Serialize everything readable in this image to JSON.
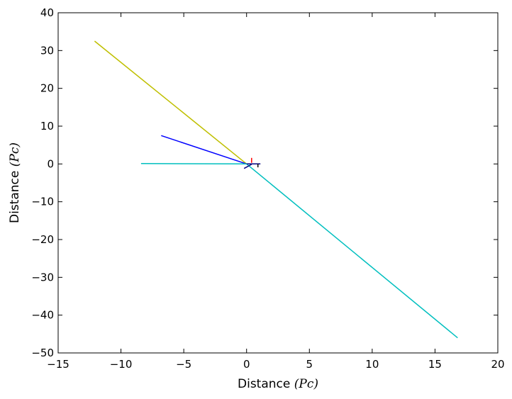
{
  "chart_data": {
    "type": "line",
    "title": "",
    "xlabel": {
      "text": "Distance",
      "unit": "(Pc)"
    },
    "ylabel": {
      "text": "Distance",
      "unit": "(Pc)"
    },
    "xlim": [
      -15,
      20
    ],
    "ylim": [
      -50,
      40
    ],
    "xticks": [
      -15,
      -10,
      -5,
      0,
      5,
      10,
      15,
      20
    ],
    "yticks": [
      -50,
      -40,
      -30,
      -20,
      -10,
      0,
      10,
      20,
      30,
      40
    ],
    "xtick_labels": [
      "−15",
      "−10",
      "−5",
      "0",
      "5",
      "10",
      "15",
      "20"
    ],
    "ytick_labels": [
      "−50",
      "−40",
      "−30",
      "−20",
      "−10",
      "0",
      "10",
      "20",
      "30",
      "40"
    ],
    "grid": false,
    "legend": null,
    "series": [
      {
        "color": "#bfbf00",
        "points": [
          [
            -12.1,
            32.5
          ],
          [
            0.0,
            0.0
          ]
        ]
      },
      {
        "color": "#0000ff",
        "points": [
          [
            -6.8,
            7.5
          ],
          [
            0.0,
            0.0
          ]
        ]
      },
      {
        "color": "#00bfbf",
        "points": [
          [
            -8.4,
            0.1
          ],
          [
            0.0,
            0.0
          ]
        ]
      },
      {
        "color": "#00bfbf",
        "points": [
          [
            0.0,
            0.0
          ],
          [
            16.8,
            -46.0
          ]
        ]
      },
      {
        "color": "#000080",
        "points": [
          [
            -0.2,
            -1.2
          ],
          [
            0.4,
            -0.1
          ]
        ]
      },
      {
        "color": "#000080",
        "points": [
          [
            0.0,
            0.0
          ],
          [
            1.1,
            0.0
          ]
        ]
      },
      {
        "color": "#000000",
        "points": [
          [
            0.9,
            0.0
          ],
          [
            0.9,
            -0.9
          ]
        ]
      },
      {
        "color": "#ff0000",
        "points": [
          [
            0.4,
            0.3
          ],
          [
            0.4,
            1.6
          ]
        ]
      }
    ]
  }
}
